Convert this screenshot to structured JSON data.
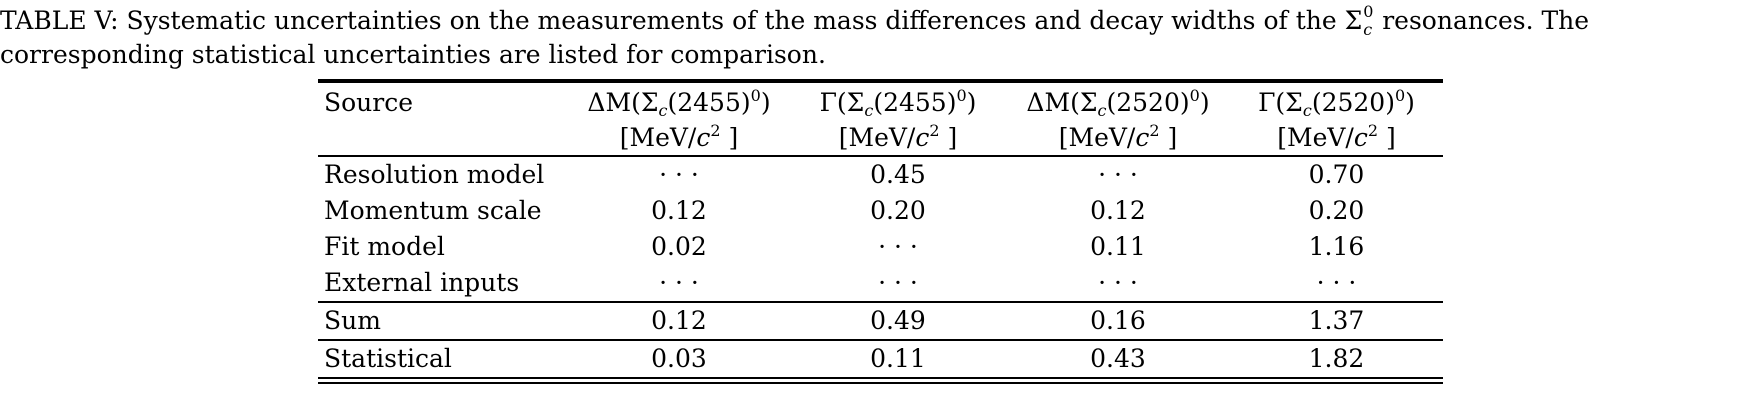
{
  "caption": {
    "line1_prefix": "TABLE V: Systematic uncertainties on the measurements of the mass differences and decay widths of the ",
    "sigma_symbol": "Σ",
    "sigma_superscript": "0",
    "sigma_subscript": "c",
    "line1_suffix": " resonances. The",
    "line2": "corresponding statistical uncertainties are listed for comparison."
  },
  "table": {
    "header": {
      "source_label": "Source",
      "columns": [
        {
          "prefix": "ΔM(Σ",
          "sub": "c",
          "mass": "(2455)",
          "sup": "0",
          "close": ")"
        },
        {
          "prefix": "Γ(Σ",
          "sub": "c",
          "mass": "(2455)",
          "sup": "0",
          "close": ")"
        },
        {
          "prefix": "ΔM(Σ",
          "sub": "c",
          "mass": "(2520)",
          "sup": "0",
          "close": ")"
        },
        {
          "prefix": "Γ(Σ",
          "sub": "c",
          "mass": "(2520)",
          "sup": "0",
          "close": ")"
        }
      ],
      "unit_prefix": "[MeV/",
      "unit_c": "c",
      "unit_power": "2",
      "unit_suffix": " ]"
    },
    "rows": [
      {
        "label": "Resolution model",
        "values": [
          "· · ·",
          "0.45",
          "· · ·",
          "0.70"
        ]
      },
      {
        "label": "Momentum scale",
        "values": [
          "0.12",
          "0.20",
          "0.12",
          "0.20"
        ]
      },
      {
        "label": "Fit model",
        "values": [
          "0.02",
          "· · ·",
          "0.11",
          "1.16"
        ]
      },
      {
        "label": "External inputs",
        "values": [
          "· · ·",
          "· · ·",
          "· · ·",
          "· · ·"
        ]
      }
    ],
    "sum_row": {
      "label": "Sum",
      "values": [
        "0.12",
        "0.49",
        "0.16",
        "1.37"
      ]
    },
    "stat_row": {
      "label": "Statistical",
      "values": [
        "0.03",
        "0.11",
        "0.43",
        "1.82"
      ]
    }
  }
}
